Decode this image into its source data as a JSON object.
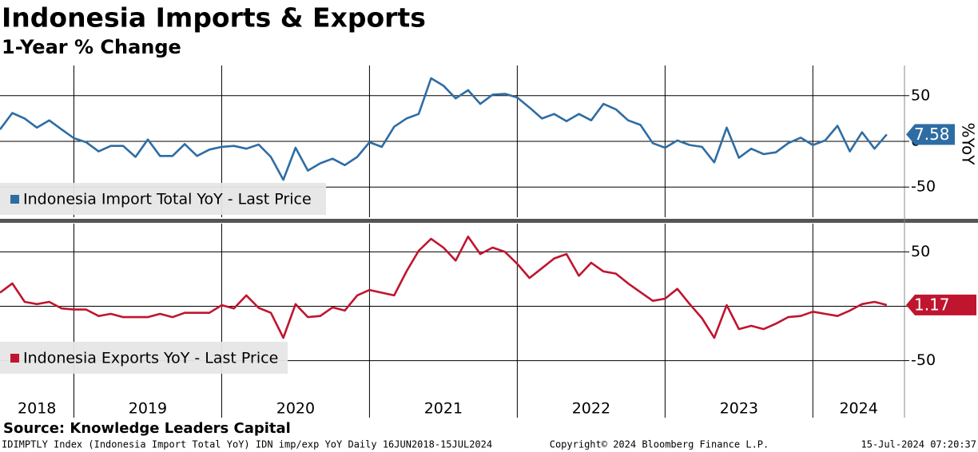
{
  "title": "Indonesia Imports & Exports",
  "subtitle": "1-Year % Change",
  "y_axis_label": "%YoY",
  "source": "Source: Knowledge Leaders Capital",
  "footer": {
    "left": "IDIMPTLY Index (Indonesia Import Total YoY) IDN imp/exp YoY  Daily 16JUN2018-15JUL2024",
    "center": "Copyright© 2024 Bloomberg Finance L.P.",
    "right": "15-Jul-2024 07:20:37"
  },
  "x_axis": {
    "xlim": [
      2018.5,
      2024.62
    ],
    "xticks": [
      2018,
      2019,
      2020,
      2021,
      2022,
      2023,
      2024
    ],
    "x": [
      2018.5,
      2018.583,
      2018.667,
      2018.75,
      2018.833,
      2018.917,
      2019.0,
      2019.083,
      2019.167,
      2019.25,
      2019.333,
      2019.417,
      2019.5,
      2019.583,
      2019.667,
      2019.75,
      2019.833,
      2019.917,
      2020.0,
      2020.083,
      2020.167,
      2020.25,
      2020.333,
      2020.417,
      2020.5,
      2020.583,
      2020.667,
      2020.75,
      2020.833,
      2020.917,
      2021.0,
      2021.083,
      2021.167,
      2021.25,
      2021.333,
      2021.417,
      2021.5,
      2021.583,
      2021.667,
      2021.75,
      2021.833,
      2021.917,
      2022.0,
      2022.083,
      2022.167,
      2022.25,
      2022.333,
      2022.417,
      2022.5,
      2022.583,
      2022.667,
      2022.75,
      2022.833,
      2022.917,
      2023.0,
      2023.083,
      2023.167,
      2023.25,
      2023.333,
      2023.417,
      2023.5,
      2023.583,
      2023.667,
      2023.75,
      2023.833,
      2023.917,
      2024.0,
      2024.083,
      2024.167,
      2024.25,
      2024.333,
      2024.417,
      2024.5
    ]
  },
  "chart_data": [
    {
      "type": "line",
      "ylim": [
        -83,
        83
      ],
      "yticks": [
        -50,
        0,
        50
      ],
      "grid": true,
      "series": [
        {
          "name": "Indonesia Import Total YoY - Last Price",
          "color": "#2e6da4",
          "values": [
            13,
            31,
            25,
            15,
            23,
            13,
            3.5,
            -1,
            -11,
            -5,
            -5,
            -17,
            2,
            -16,
            -16,
            -3,
            -16,
            -9,
            -6,
            -5,
            -8,
            -3.5,
            -17,
            -42,
            -7,
            -32,
            -24,
            -19,
            -26,
            -17,
            -1,
            -6,
            16,
            25,
            30,
            69,
            61,
            47,
            56,
            41,
            51,
            52,
            48,
            37,
            25,
            30,
            22,
            30,
            23,
            41,
            35,
            23,
            18,
            -2,
            -7,
            1,
            -4,
            -6,
            -23,
            15,
            -18,
            -8,
            -14,
            -12,
            -2,
            4,
            -4,
            1,
            17,
            -11,
            10,
            -8,
            7.58
          ]
        }
      ]
    },
    {
      "type": "line",
      "ylim": [
        -65,
        76
      ],
      "yticks": [
        -50,
        0,
        50
      ],
      "grid": true,
      "series": [
        {
          "name": "Indonesia Exports YoY - Last Price",
          "color": "#c0152f",
          "values": [
            12.5,
            21,
            4,
            2,
            4,
            -2,
            -3,
            -3,
            -9,
            -7,
            -10,
            -10,
            -10,
            -7,
            -10,
            -6,
            -6,
            -6,
            1,
            -2,
            10,
            -1.5,
            -6,
            -29,
            2,
            -10,
            -9,
            -1,
            -4,
            10,
            15,
            12.5,
            10,
            32,
            51,
            62,
            54,
            42,
            64,
            48,
            54,
            50,
            39,
            26,
            35,
            44,
            48,
            28,
            40,
            32,
            30,
            21,
            13,
            5,
            7,
            16,
            2,
            -11,
            -29,
            1,
            -21,
            -18,
            -21,
            -16,
            -10,
            -9,
            -5,
            -7,
            -9,
            -4,
            2,
            4,
            1.17
          ]
        }
      ]
    }
  ]
}
